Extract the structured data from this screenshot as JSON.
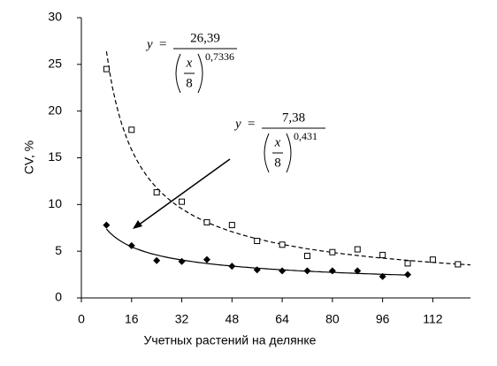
{
  "chart_data": {
    "type": "scatter",
    "xlabel": "Учетных растений на делянке",
    "ylabel": "CV, %",
    "xlim": [
      0,
      124
    ],
    "ylim": [
      0,
      30
    ],
    "xticks": [
      0,
      16,
      32,
      48,
      64,
      80,
      96,
      112
    ],
    "yticks": [
      0,
      5,
      10,
      15,
      20,
      25,
      30
    ],
    "series": [
      {
        "marker": "square",
        "color": "#000000",
        "x": [
          8,
          16,
          24,
          32,
          40,
          48,
          56,
          64,
          72,
          80,
          88,
          96,
          104,
          112,
          120
        ],
        "values": [
          24.5,
          18,
          11.3,
          10.3,
          8.1,
          7.8,
          6.1,
          5.7,
          4.5,
          4.9,
          5.2,
          4.6,
          3.7,
          4.1,
          3.6
        ]
      },
      {
        "marker": "diamond",
        "color": "#000000",
        "x": [
          8,
          16,
          24,
          32,
          40,
          48,
          56,
          64,
          72,
          80,
          88,
          96,
          104
        ],
        "values": [
          7.8,
          5.6,
          4.0,
          3.9,
          4.1,
          3.4,
          3.0,
          2.9,
          2.9,
          2.9,
          2.9,
          2.3,
          2.5
        ]
      }
    ],
    "fits": [
      {
        "style": "dashed",
        "y_symbol": "y",
        "equals": "=",
        "x_symbol": "x",
        "divisor": 8,
        "numerator": {
          "value": 26.39,
          "label": "26,39"
        },
        "exponent": {
          "value": 0.7336,
          "label": "0,7336"
        }
      },
      {
        "style": "solid",
        "y_symbol": "y",
        "equals": "=",
        "x_symbol": "x",
        "divisor": 8,
        "numerator": {
          "value": 7.38,
          "label": "7,38"
        },
        "exponent": {
          "value": 0.431,
          "label": "0,431"
        }
      }
    ]
  }
}
